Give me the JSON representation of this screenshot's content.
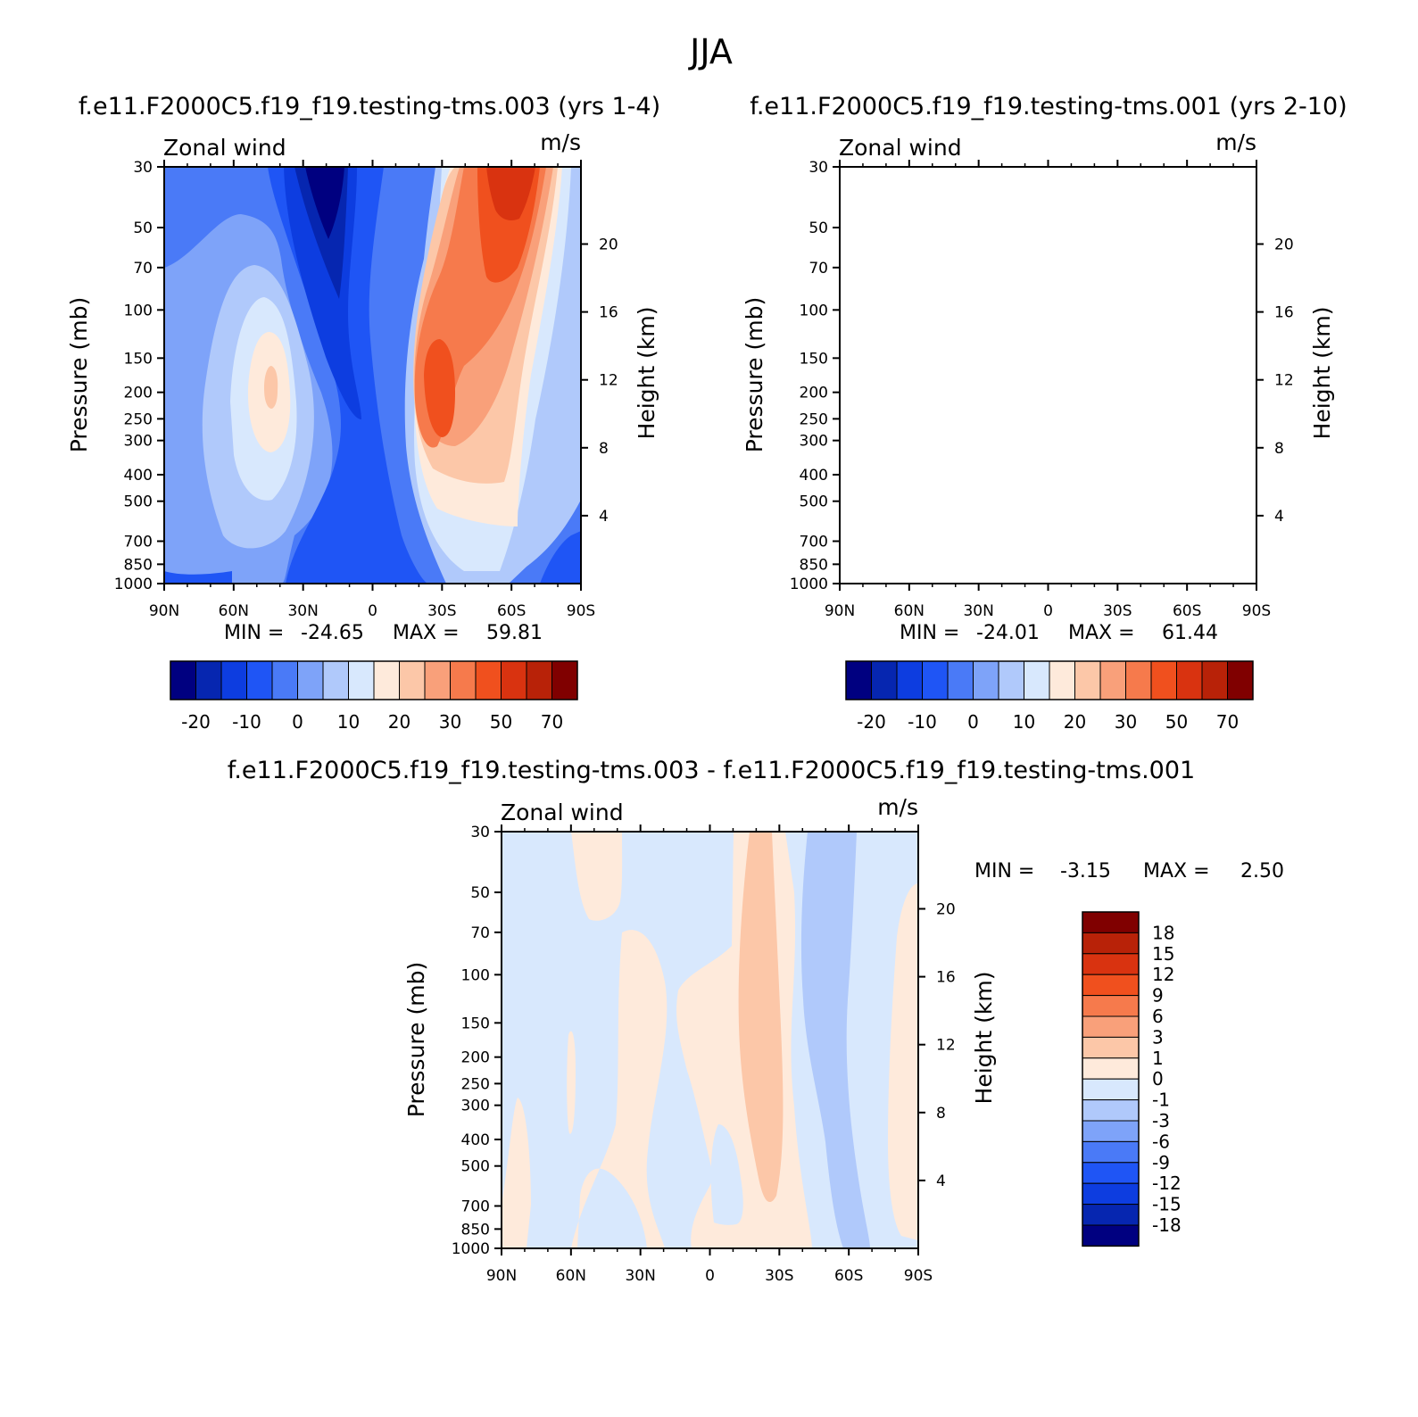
{
  "page_title": "JJA",
  "colors": {
    "bipolar": [
      "#000080",
      "#0626b0",
      "#0d3de0",
      "#1f55f5",
      "#4a7af7",
      "#7ea3f9",
      "#b0c9fb",
      "#d8e8fd",
      "#feeadb",
      "#fcc7a8",
      "#f9a07a",
      "#f67a4c",
      "#f0501e",
      "#d93310",
      "#b82208",
      "#800000"
    ],
    "diff": [
      "#000080",
      "#0626b0",
      "#0d3de0",
      "#1f55f5",
      "#4a7af7",
      "#7ea3f9",
      "#b0c9fb",
      "#d8e8fd",
      "#feeadb",
      "#fcc7a8",
      "#f9a07a",
      "#f67a4c",
      "#f0501e",
      "#d93310",
      "#b82208",
      "#800000"
    ]
  },
  "chart_data": [
    {
      "type": "contour",
      "title": "f.e11.F2000C5.f19_f19.testing-tms.003 (yrs 1-4)",
      "left_label": "Zonal wind",
      "right_label": "m/s",
      "ylabel": "Pressure (mb)",
      "y2label": "Height (km)",
      "x_ticks": [
        "90N",
        "60N",
        "30N",
        "0",
        "30S",
        "60S",
        "90S"
      ],
      "y_ticks": [
        "30",
        "50",
        "70",
        "100",
        "150",
        "200",
        "250",
        "300",
        "400",
        "500",
        "700",
        "850",
        "1000"
      ],
      "y2_ticks": [
        "20",
        "16",
        "12",
        "8",
        "4"
      ],
      "stats": {
        "min_label": "MIN =",
        "min": "-24.65",
        "max_label": "MAX =",
        "max": "59.81"
      },
      "colorbar_labels": [
        "-20",
        "-10",
        "0",
        "10",
        "20",
        "30",
        "50",
        "70"
      ],
      "contour_levels": [
        -25,
        -20,
        -15,
        -10,
        -5,
        0,
        5,
        10,
        15,
        20,
        25,
        30,
        40,
        50,
        60,
        70
      ]
    },
    {
      "type": "contour",
      "title": "f.e11.F2000C5.f19_f19.testing-tms.001 (yrs 2-10)",
      "left_label": "Zonal wind",
      "right_label": "m/s",
      "ylabel": "Pressure (mb)",
      "y2label": "Height (km)",
      "x_ticks": [
        "90N",
        "60N",
        "30N",
        "0",
        "30S",
        "60S",
        "90S"
      ],
      "y_ticks": [
        "30",
        "50",
        "70",
        "100",
        "150",
        "200",
        "250",
        "300",
        "400",
        "500",
        "700",
        "850",
        "1000"
      ],
      "y2_ticks": [
        "20",
        "16",
        "12",
        "8",
        "4"
      ],
      "stats": {
        "min_label": "MIN =",
        "min": "-24.01",
        "max_label": "MAX =",
        "max": "61.44"
      },
      "colorbar_labels": [
        "-20",
        "-10",
        "0",
        "10",
        "20",
        "30",
        "50",
        "70"
      ],
      "contour_levels": [
        -25,
        -20,
        -15,
        -10,
        -5,
        0,
        5,
        10,
        15,
        20,
        25,
        30,
        40,
        50,
        60,
        70
      ]
    },
    {
      "type": "contour",
      "title": "f.e11.F2000C5.f19_f19.testing-tms.003 - f.e11.F2000C5.f19_f19.testing-tms.001",
      "left_label": "Zonal wind",
      "right_label": "m/s",
      "ylabel": "Pressure (mb)",
      "y2label": "Height (km)",
      "x_ticks": [
        "90N",
        "60N",
        "30N",
        "0",
        "30S",
        "60S",
        "90S"
      ],
      "y_ticks": [
        "30",
        "50",
        "70",
        "100",
        "150",
        "200",
        "250",
        "300",
        "400",
        "500",
        "700",
        "850",
        "1000"
      ],
      "y2_ticks": [
        "20",
        "16",
        "12",
        "8",
        "4"
      ],
      "stats": {
        "min_label": "MIN =",
        "min": "-3.15",
        "max_label": "MAX =",
        "max": "2.50"
      },
      "colorbar_labels": [
        "18",
        "15",
        "12",
        "9",
        "6",
        "3",
        "1",
        "0",
        "-1",
        "-3",
        "-6",
        "-9",
        "-12",
        "-15",
        "-18"
      ],
      "contour_levels": [
        -18,
        -15,
        -12,
        -9,
        -6,
        -3,
        -1,
        0,
        1,
        3,
        6,
        9,
        12,
        15,
        18
      ]
    }
  ]
}
